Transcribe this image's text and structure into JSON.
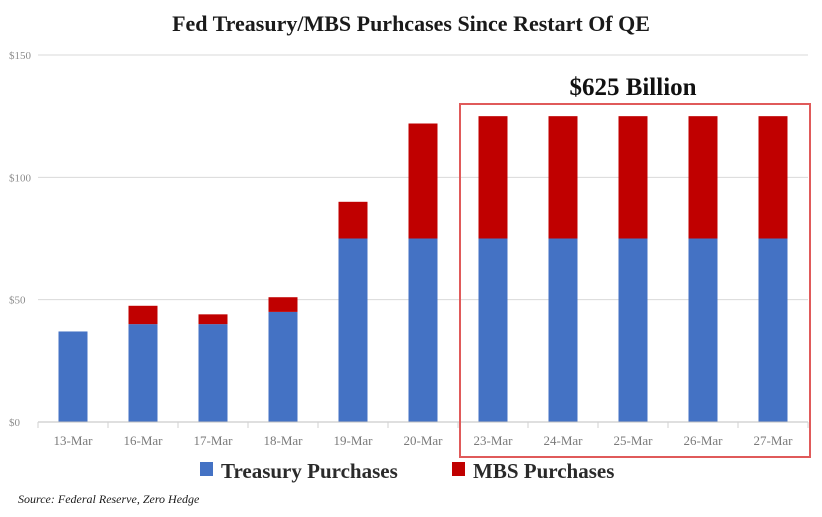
{
  "chart_data": {
    "type": "bar",
    "stacked": true,
    "title": "Fed Treasury/MBS Purhcases Since Restart Of QE",
    "categories": [
      "13-Mar",
      "16-Mar",
      "17-Mar",
      "18-Mar",
      "19-Mar",
      "20-Mar",
      "23-Mar",
      "24-Mar",
      "25-Mar",
      "26-Mar",
      "27-Mar"
    ],
    "series": [
      {
        "name": "Treasury Purchases",
        "color": "#4472c4",
        "values": [
          37,
          40,
          40,
          45,
          75,
          75,
          75,
          75,
          75,
          75,
          75
        ]
      },
      {
        "name": "MBS Purchases",
        "color": "#c00000",
        "values": [
          0,
          7.5,
          4,
          6,
          15,
          47,
          50,
          50,
          50,
          50,
          50
        ]
      }
    ],
    "ylim": [
      0,
      150
    ],
    "yticks": [
      {
        "value": 0,
        "label": "$0"
      },
      {
        "value": 50,
        "label": "$50"
      },
      {
        "value": 100,
        "label": "$100"
      },
      {
        "value": 150,
        "label": "$150"
      }
    ],
    "xlabel": "",
    "ylabel": "",
    "grid": true,
    "legend_position": "bottom-center",
    "annotation": {
      "text": "$625 Billion",
      "highlight_from": "23-Mar",
      "highlight_to": "27-Mar",
      "box_color": "#e05a5a"
    },
    "source": "Source: Federal Reserve, Zero Hedge"
  }
}
